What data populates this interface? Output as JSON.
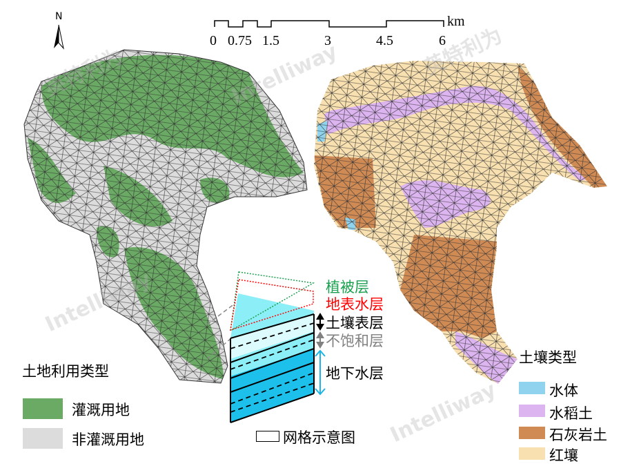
{
  "north_arrow": {
    "label": "N"
  },
  "scale_bar": {
    "unit": "km",
    "ticks": [
      "0",
      "0.75",
      "1.5",
      "3",
      "4.5",
      "6"
    ]
  },
  "left_map": {
    "legend_title": "土地利用类型",
    "legend": [
      {
        "label": "灌溉用地",
        "color": "#6aaa64"
      },
      {
        "label": "非灌溉用地",
        "color": "#dcdcdc"
      }
    ]
  },
  "right_map": {
    "legend_title": "土壤类型",
    "legend": [
      {
        "label": "水体",
        "color": "#8fd3ee"
      },
      {
        "label": "水稻土",
        "color": "#dcb4f0"
      },
      {
        "label": "石灰岩土",
        "color": "#d08b55"
      },
      {
        "label": "红壤",
        "color": "#f8e0b0"
      }
    ]
  },
  "grid_diagram": {
    "layers": [
      {
        "label": "植被层",
        "color": "#1aa050"
      },
      {
        "label": "地表水层",
        "color": "#ff0000"
      },
      {
        "label": "土壤表层",
        "color": "#000000"
      },
      {
        "label": "不饱和层",
        "color": "#808080"
      },
      {
        "label": "地下水层",
        "color": "#000000"
      }
    ],
    "legend_label": "网格示意图"
  },
  "watermark": [
    "英特利为",
    "Intelliway"
  ]
}
